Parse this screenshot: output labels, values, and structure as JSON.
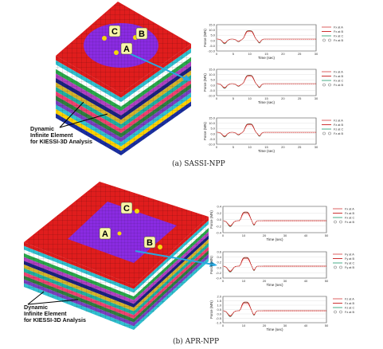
{
  "captions": {
    "top": "(a)  SASSI-NPP",
    "bottom": "(b)  APR-NPP"
  },
  "fe_label": [
    "Dynamic",
    "Infinite Element",
    "for KIESSI-3D Analysis"
  ],
  "points_top": [
    "A",
    "B",
    "C"
  ],
  "points_bottom": [
    "A",
    "B",
    "C"
  ],
  "colors": {
    "soil_top": "#e01d1d",
    "basemat": "#8a2be2",
    "point": "#f5d90a",
    "callout": "#29a8e0",
    "line_a": "#d43a3a",
    "line_b": "#c00000",
    "line_c": "#1a9a6a",
    "line_b_dashed": "#ff9999"
  },
  "chart_data": [
    {
      "type": "line",
      "panel": "top-1",
      "ylabel": "Force (MN)",
      "xlabel": "Time (sec)",
      "xlim": [
        0,
        30
      ],
      "xticks": [
        "0",
        "5",
        "10",
        "15",
        "20",
        "25",
        "30"
      ],
      "yticks": [
        "15.0",
        "10.0",
        "5.0",
        "0.0",
        "-5.0",
        "-10.0"
      ],
      "legend": [
        "Fx at A",
        "Fx at B",
        "Fx at C",
        "Fx at B"
      ]
    },
    {
      "type": "line",
      "panel": "top-2",
      "ylabel": "Force (MN)",
      "xlabel": "Time (sec)",
      "xlim": [
        0,
        30
      ],
      "xticks": [
        "0",
        "5",
        "10",
        "15",
        "20",
        "25",
        "30"
      ],
      "yticks": [
        "15.0",
        "10.0",
        "5.0",
        "0.0",
        "-5.0",
        "-10.0"
      ],
      "legend": [
        "Fx at A",
        "Fx at B",
        "Fx at C",
        "Fx at B"
      ]
    },
    {
      "type": "line",
      "panel": "top-3",
      "ylabel": "Force (MN)",
      "xlabel": "Time (sec)",
      "xlim": [
        0,
        30
      ],
      "xticks": [
        "0",
        "5",
        "10",
        "15",
        "20",
        "25",
        "30"
      ],
      "yticks": [
        "15.0",
        "10.0",
        "5.0",
        "0.0",
        "-5.0",
        "-10.0"
      ],
      "legend": [
        "Fz at A",
        "Fz at B",
        "Fz at C",
        "Fz at B"
      ]
    },
    {
      "type": "line",
      "panel": "bottom-1",
      "ylabel": "Force (MN)",
      "xlabel": "Time (sec)",
      "xlim": [
        0,
        50
      ],
      "xticks": [
        "0",
        "10",
        "20",
        "30",
        "40",
        "50"
      ],
      "yticks": [
        "0.4",
        "0.2",
        "0.0",
        "-0.2",
        "-0.4"
      ],
      "legend": [
        "Fx at A",
        "Fx at B",
        "Fx at C",
        "Fx at B"
      ]
    },
    {
      "type": "line",
      "panel": "bottom-2",
      "ylabel": "Force (MN)",
      "xlabel": "Time (sec)",
      "xlim": [
        0,
        50
      ],
      "xticks": [
        "0",
        "10",
        "20",
        "30",
        "40",
        "50"
      ],
      "yticks": [
        "0.6",
        "0.4",
        "0.2",
        "0.0",
        "-0.2",
        "-0.4"
      ],
      "legend": [
        "Fy at A",
        "Fy at B",
        "Fy at C",
        "Fy at B"
      ]
    },
    {
      "type": "line",
      "panel": "bottom-3",
      "ylabel": "Force (MN)",
      "xlabel": "Time (sec)",
      "xlim": [
        0,
        50
      ],
      "xticks": [
        "0",
        "10",
        "20",
        "30",
        "40",
        "50"
      ],
      "yticks": [
        "2.0",
        "1.5",
        "1.0",
        "0.5",
        "0.0",
        "-0.5",
        "-1.0"
      ],
      "legend": [
        "Fz at A",
        "Fz at B",
        "Fz at C",
        "Fz at B"
      ]
    }
  ]
}
